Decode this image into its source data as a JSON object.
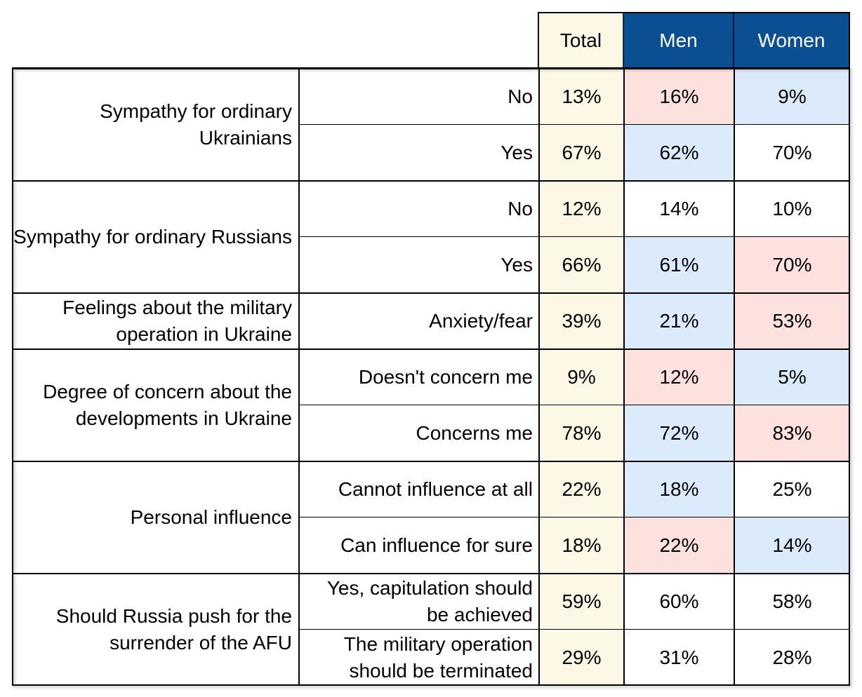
{
  "chart_data": {
    "type": "table",
    "columns": [
      "Total",
      "Men",
      "Women"
    ],
    "groups": [
      {
        "label": "Sympathy for ordinary Ukrainians",
        "rows": [
          {
            "label": "No",
            "values": [
              "13%",
              "16%",
              "9%"
            ],
            "shading": [
              "total",
              "red",
              "blue"
            ]
          },
          {
            "label": "Yes",
            "values": [
              "67%",
              "62%",
              "70%"
            ],
            "shading": [
              "total",
              "blue",
              "none"
            ]
          }
        ]
      },
      {
        "label": "Sympathy for ordinary Russians",
        "rows": [
          {
            "label": "No",
            "values": [
              "12%",
              "14%",
              "10%"
            ],
            "shading": [
              "total",
              "none",
              "none"
            ]
          },
          {
            "label": "Yes",
            "values": [
              "66%",
              "61%",
              "70%"
            ],
            "shading": [
              "total",
              "blue",
              "red"
            ]
          }
        ]
      },
      {
        "label": "Feelings about the military operation in Ukraine",
        "rows": [
          {
            "label": "Anxiety/fear",
            "values": [
              "39%",
              "21%",
              "53%"
            ],
            "shading": [
              "total",
              "blue",
              "red"
            ]
          }
        ]
      },
      {
        "label": "Degree of concern about the developments in Ukraine",
        "rows": [
          {
            "label": "Doesn't concern me",
            "values": [
              "9%",
              "12%",
              "5%"
            ],
            "shading": [
              "total",
              "red",
              "blue"
            ]
          },
          {
            "label": "Concerns me",
            "values": [
              "78%",
              "72%",
              "83%"
            ],
            "shading": [
              "total",
              "blue",
              "red"
            ]
          }
        ]
      },
      {
        "label": "Personal influence",
        "rows": [
          {
            "label": "Cannot influence at all",
            "values": [
              "22%",
              "18%",
              "25%"
            ],
            "shading": [
              "total",
              "blue",
              "none"
            ]
          },
          {
            "label": "Can influence for sure",
            "values": [
              "18%",
              "22%",
              "14%"
            ],
            "shading": [
              "total",
              "red",
              "blue"
            ]
          }
        ]
      },
      {
        "label": "Should Russia push for the surrender of the AFU",
        "rows": [
          {
            "label": "Yes, capitulation should be achieved",
            "values": [
              "59%",
              "60%",
              "58%"
            ],
            "shading": [
              "total",
              "none",
              "none"
            ]
          },
          {
            "label": "The military operation should be terminated",
            "values": [
              "29%",
              "31%",
              "28%"
            ],
            "shading": [
              "total",
              "none",
              "none"
            ]
          }
        ]
      }
    ]
  },
  "colors": {
    "header_blue": "#0b4f93",
    "total_fill": "#fdf8e6",
    "red_fill": "#fde1de",
    "blue_fill": "#dcebfb",
    "border": "#000000"
  }
}
